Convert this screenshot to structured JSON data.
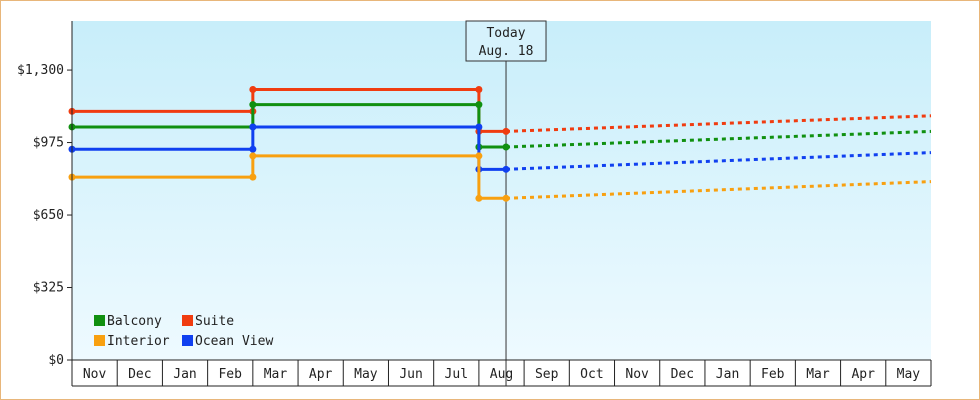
{
  "chart_data": {
    "type": "line",
    "step": true,
    "y_axis": {
      "ticks": [
        {
          "value": 0,
          "label": "$0"
        },
        {
          "value": 325,
          "label": "$325"
        },
        {
          "value": 650,
          "label": "$650"
        },
        {
          "value": 975,
          "label": "$975"
        },
        {
          "value": 1300,
          "label": "$1,300"
        }
      ],
      "ylim": [
        0,
        1520
      ]
    },
    "x_axis": {
      "months": [
        "Nov",
        "Dec",
        "Jan",
        "Feb",
        "Mar",
        "Apr",
        "May",
        "Jun",
        "Jul",
        "Aug",
        "Sep",
        "Oct",
        "Nov",
        "Dec",
        "Jan",
        "Feb",
        "Mar",
        "Apr",
        "May"
      ],
      "range_months": [
        0,
        19
      ]
    },
    "today_marker": {
      "line1": "Today",
      "line2": "Aug. 18",
      "month_position": 9.6
    },
    "background_gradient": [
      "#c8eefa",
      "#eefaff"
    ],
    "grid": false,
    "legend_placement": "bottom-left",
    "legend": [
      {
        "label": "Balcony",
        "color": "#109010"
      },
      {
        "label": "Suite",
        "color": "#f03c10"
      },
      {
        "label": "Interior",
        "color": "#f8a010"
      },
      {
        "label": "Ocean View",
        "color": "#1040f0"
      }
    ],
    "series": [
      {
        "color": "#f03c10",
        "historical": [
          [
            0,
            1115
          ],
          [
            4,
            1115
          ],
          [
            4,
            1213
          ],
          [
            9,
            1213
          ],
          [
            9,
            1025
          ],
          [
            9.6,
            1025
          ]
        ],
        "forecast": [
          [
            9.6,
            1025
          ],
          [
            19,
            1095
          ]
        ]
      },
      {
        "color": "#109010",
        "historical": [
          [
            0,
            1045
          ],
          [
            4,
            1045
          ],
          [
            4,
            1145
          ],
          [
            9,
            1145
          ],
          [
            9,
            955
          ],
          [
            9.6,
            955
          ]
        ],
        "forecast": [
          [
            9.6,
            955
          ],
          [
            19,
            1025
          ]
        ]
      },
      {
        "color": "#1040f0",
        "historical": [
          [
            0,
            945
          ],
          [
            4,
            945
          ],
          [
            4,
            1045
          ],
          [
            9,
            1045
          ],
          [
            9,
            855
          ],
          [
            9.6,
            855
          ]
        ],
        "forecast": [
          [
            9.6,
            855
          ],
          [
            19,
            930
          ]
        ]
      },
      {
        "color": "#f8a010",
        "historical": [
          [
            0,
            820
          ],
          [
            4,
            820
          ],
          [
            4,
            915
          ],
          [
            9,
            915
          ],
          [
            9,
            725
          ],
          [
            9.6,
            725
          ]
        ],
        "forecast": [
          [
            9.6,
            725
          ],
          [
            19,
            800
          ]
        ]
      }
    ]
  }
}
